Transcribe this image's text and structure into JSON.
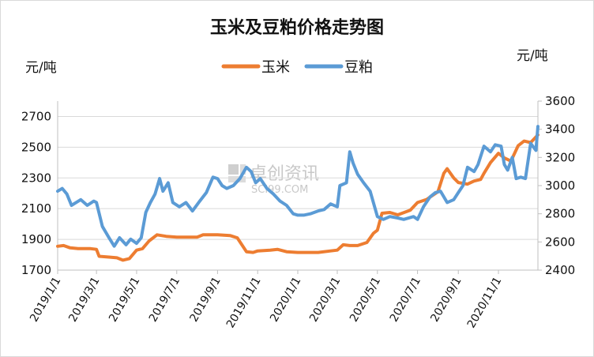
{
  "chart_data": {
    "type": "line",
    "title": "玉米及豆粕价格走势图",
    "y_left_label": "元/吨",
    "y_right_label": "元/吨",
    "y_left_range": [
      1700,
      2800
    ],
    "y_left_ticks": [
      "1700",
      "1900",
      "2100",
      "2300",
      "2500",
      "2700"
    ],
    "y_right_range": [
      2400,
      3600
    ],
    "y_right_ticks": [
      "2400",
      "2600",
      "2800",
      "3000",
      "3200",
      "3400",
      "3600"
    ],
    "x_range": [
      "2019/1/1",
      "2020/12/31"
    ],
    "x_ticks": [
      "2019/1/1",
      "2019/3/1",
      "2019/5/1",
      "2019/7/1",
      "2019/9/1",
      "2019/11/1",
      "2020/1/1",
      "2020/3/1",
      "2020/5/1",
      "2020/7/1",
      "2020/9/1",
      "2020/11/1"
    ],
    "grid": "horizontal",
    "legend_position": "top",
    "watermark": {
      "cn": "卓创资讯",
      "en": "SCI99.COM"
    },
    "series": [
      {
        "name": "玉米",
        "axis": "left",
        "color": "#ED7D31",
        "points": [
          [
            "2019-01-01",
            1855
          ],
          [
            "2019-01-10",
            1860
          ],
          [
            "2019-01-20",
            1845
          ],
          [
            "2019-02-01",
            1840
          ],
          [
            "2019-02-20",
            1840
          ],
          [
            "2019-03-01",
            1835
          ],
          [
            "2019-03-05",
            1790
          ],
          [
            "2019-03-20",
            1785
          ],
          [
            "2019-04-01",
            1780
          ],
          [
            "2019-04-10",
            1765
          ],
          [
            "2019-04-20",
            1775
          ],
          [
            "2019-05-01",
            1830
          ],
          [
            "2019-05-10",
            1840
          ],
          [
            "2019-05-20",
            1890
          ],
          [
            "2019-06-01",
            1930
          ],
          [
            "2019-06-15",
            1920
          ],
          [
            "2019-07-01",
            1915
          ],
          [
            "2019-08-01",
            1915
          ],
          [
            "2019-08-10",
            1930
          ],
          [
            "2019-09-01",
            1930
          ],
          [
            "2019-09-20",
            1925
          ],
          [
            "2019-10-01",
            1910
          ],
          [
            "2019-10-15",
            1820
          ],
          [
            "2019-10-25",
            1815
          ],
          [
            "2019-11-01",
            1825
          ],
          [
            "2019-11-20",
            1830
          ],
          [
            "2019-12-01",
            1835
          ],
          [
            "2019-12-15",
            1820
          ],
          [
            "2020-01-01",
            1815
          ],
          [
            "2020-02-01",
            1815
          ],
          [
            "2020-02-20",
            1825
          ],
          [
            "2020-03-01",
            1830
          ],
          [
            "2020-03-10",
            1865
          ],
          [
            "2020-03-20",
            1860
          ],
          [
            "2020-04-01",
            1860
          ],
          [
            "2020-04-15",
            1880
          ],
          [
            "2020-04-25",
            1940
          ],
          [
            "2020-05-01",
            1960
          ],
          [
            "2020-05-08",
            2070
          ],
          [
            "2020-05-20",
            2075
          ],
          [
            "2020-06-01",
            2060
          ],
          [
            "2020-06-20",
            2090
          ],
          [
            "2020-07-01",
            2140
          ],
          [
            "2020-07-15",
            2160
          ],
          [
            "2020-07-25",
            2190
          ],
          [
            "2020-08-01",
            2210
          ],
          [
            "2020-08-10",
            2330
          ],
          [
            "2020-08-15",
            2360
          ],
          [
            "2020-08-25",
            2300
          ],
          [
            "2020-09-01",
            2270
          ],
          [
            "2020-09-15",
            2260
          ],
          [
            "2020-09-25",
            2280
          ],
          [
            "2020-10-05",
            2290
          ],
          [
            "2020-10-10",
            2330
          ],
          [
            "2020-10-20",
            2400
          ],
          [
            "2020-11-01",
            2460
          ],
          [
            "2020-11-10",
            2430
          ],
          [
            "2020-11-20",
            2410
          ],
          [
            "2020-12-01",
            2510
          ],
          [
            "2020-12-10",
            2540
          ],
          [
            "2020-12-20",
            2530
          ],
          [
            "2020-12-31",
            2580
          ]
        ]
      },
      {
        "name": "豆粕",
        "axis": "right",
        "color": "#5B9BD5",
        "points": [
          [
            "2019-01-01",
            2960
          ],
          [
            "2019-01-08",
            2980
          ],
          [
            "2019-01-15",
            2940
          ],
          [
            "2019-01-22",
            2860
          ],
          [
            "2019-01-29",
            2880
          ],
          [
            "2019-02-05",
            2900
          ],
          [
            "2019-02-15",
            2860
          ],
          [
            "2019-02-25",
            2890
          ],
          [
            "2019-03-01",
            2880
          ],
          [
            "2019-03-10",
            2710
          ],
          [
            "2019-03-20",
            2630
          ],
          [
            "2019-03-28",
            2570
          ],
          [
            "2019-04-05",
            2630
          ],
          [
            "2019-04-15",
            2580
          ],
          [
            "2019-04-22",
            2620
          ],
          [
            "2019-05-01",
            2590
          ],
          [
            "2019-05-08",
            2630
          ],
          [
            "2019-05-15",
            2810
          ],
          [
            "2019-05-22",
            2880
          ],
          [
            "2019-05-29",
            2940
          ],
          [
            "2019-06-05",
            3050
          ],
          [
            "2019-06-10",
            2960
          ],
          [
            "2019-06-18",
            3020
          ],
          [
            "2019-06-25",
            2880
          ],
          [
            "2019-07-05",
            2850
          ],
          [
            "2019-07-15",
            2880
          ],
          [
            "2019-07-25",
            2820
          ],
          [
            "2019-08-05",
            2890
          ],
          [
            "2019-08-15",
            2950
          ],
          [
            "2019-08-25",
            3060
          ],
          [
            "2019-09-01",
            3050
          ],
          [
            "2019-09-08",
            3000
          ],
          [
            "2019-09-15",
            2980
          ],
          [
            "2019-09-25",
            3000
          ],
          [
            "2019-10-05",
            3050
          ],
          [
            "2019-10-15",
            3130
          ],
          [
            "2019-10-22",
            3100
          ],
          [
            "2019-10-29",
            3020
          ],
          [
            "2019-11-05",
            3050
          ],
          [
            "2019-11-15",
            2980
          ],
          [
            "2019-11-25",
            2940
          ],
          [
            "2019-12-05",
            2890
          ],
          [
            "2019-12-15",
            2860
          ],
          [
            "2019-12-25",
            2800
          ],
          [
            "2020-01-01",
            2790
          ],
          [
            "2020-01-10",
            2790
          ],
          [
            "2020-01-20",
            2800
          ],
          [
            "2020-02-01",
            2820
          ],
          [
            "2020-02-10",
            2830
          ],
          [
            "2020-02-20",
            2870
          ],
          [
            "2020-03-01",
            2850
          ],
          [
            "2020-03-05",
            3000
          ],
          [
            "2020-03-15",
            3020
          ],
          [
            "2020-03-20",
            3240
          ],
          [
            "2020-03-25",
            3160
          ],
          [
            "2020-04-01",
            3080
          ],
          [
            "2020-04-10",
            3020
          ],
          [
            "2020-04-20",
            2960
          ],
          [
            "2020-05-01",
            2780
          ],
          [
            "2020-05-10",
            2760
          ],
          [
            "2020-05-20",
            2780
          ],
          [
            "2020-06-01",
            2770
          ],
          [
            "2020-06-10",
            2760
          ],
          [
            "2020-06-25",
            2780
          ],
          [
            "2020-07-01",
            2760
          ],
          [
            "2020-07-10",
            2850
          ],
          [
            "2020-07-20",
            2920
          ],
          [
            "2020-07-28",
            2950
          ],
          [
            "2020-08-05",
            2960
          ],
          [
            "2020-08-15",
            2880
          ],
          [
            "2020-08-25",
            2900
          ],
          [
            "2020-09-01",
            2950
          ],
          [
            "2020-09-08",
            3000
          ],
          [
            "2020-09-15",
            3130
          ],
          [
            "2020-09-25",
            3100
          ],
          [
            "2020-10-01",
            3150
          ],
          [
            "2020-10-10",
            3280
          ],
          [
            "2020-10-20",
            3240
          ],
          [
            "2020-10-27",
            3290
          ],
          [
            "2020-11-05",
            3280
          ],
          [
            "2020-11-10",
            3150
          ],
          [
            "2020-11-15",
            3110
          ],
          [
            "2020-11-22",
            3200
          ],
          [
            "2020-11-28",
            3050
          ],
          [
            "2020-12-05",
            3060
          ],
          [
            "2020-12-12",
            3050
          ],
          [
            "2020-12-20",
            3300
          ],
          [
            "2020-12-28",
            3250
          ],
          [
            "2020-12-31",
            3420
          ]
        ]
      }
    ]
  }
}
